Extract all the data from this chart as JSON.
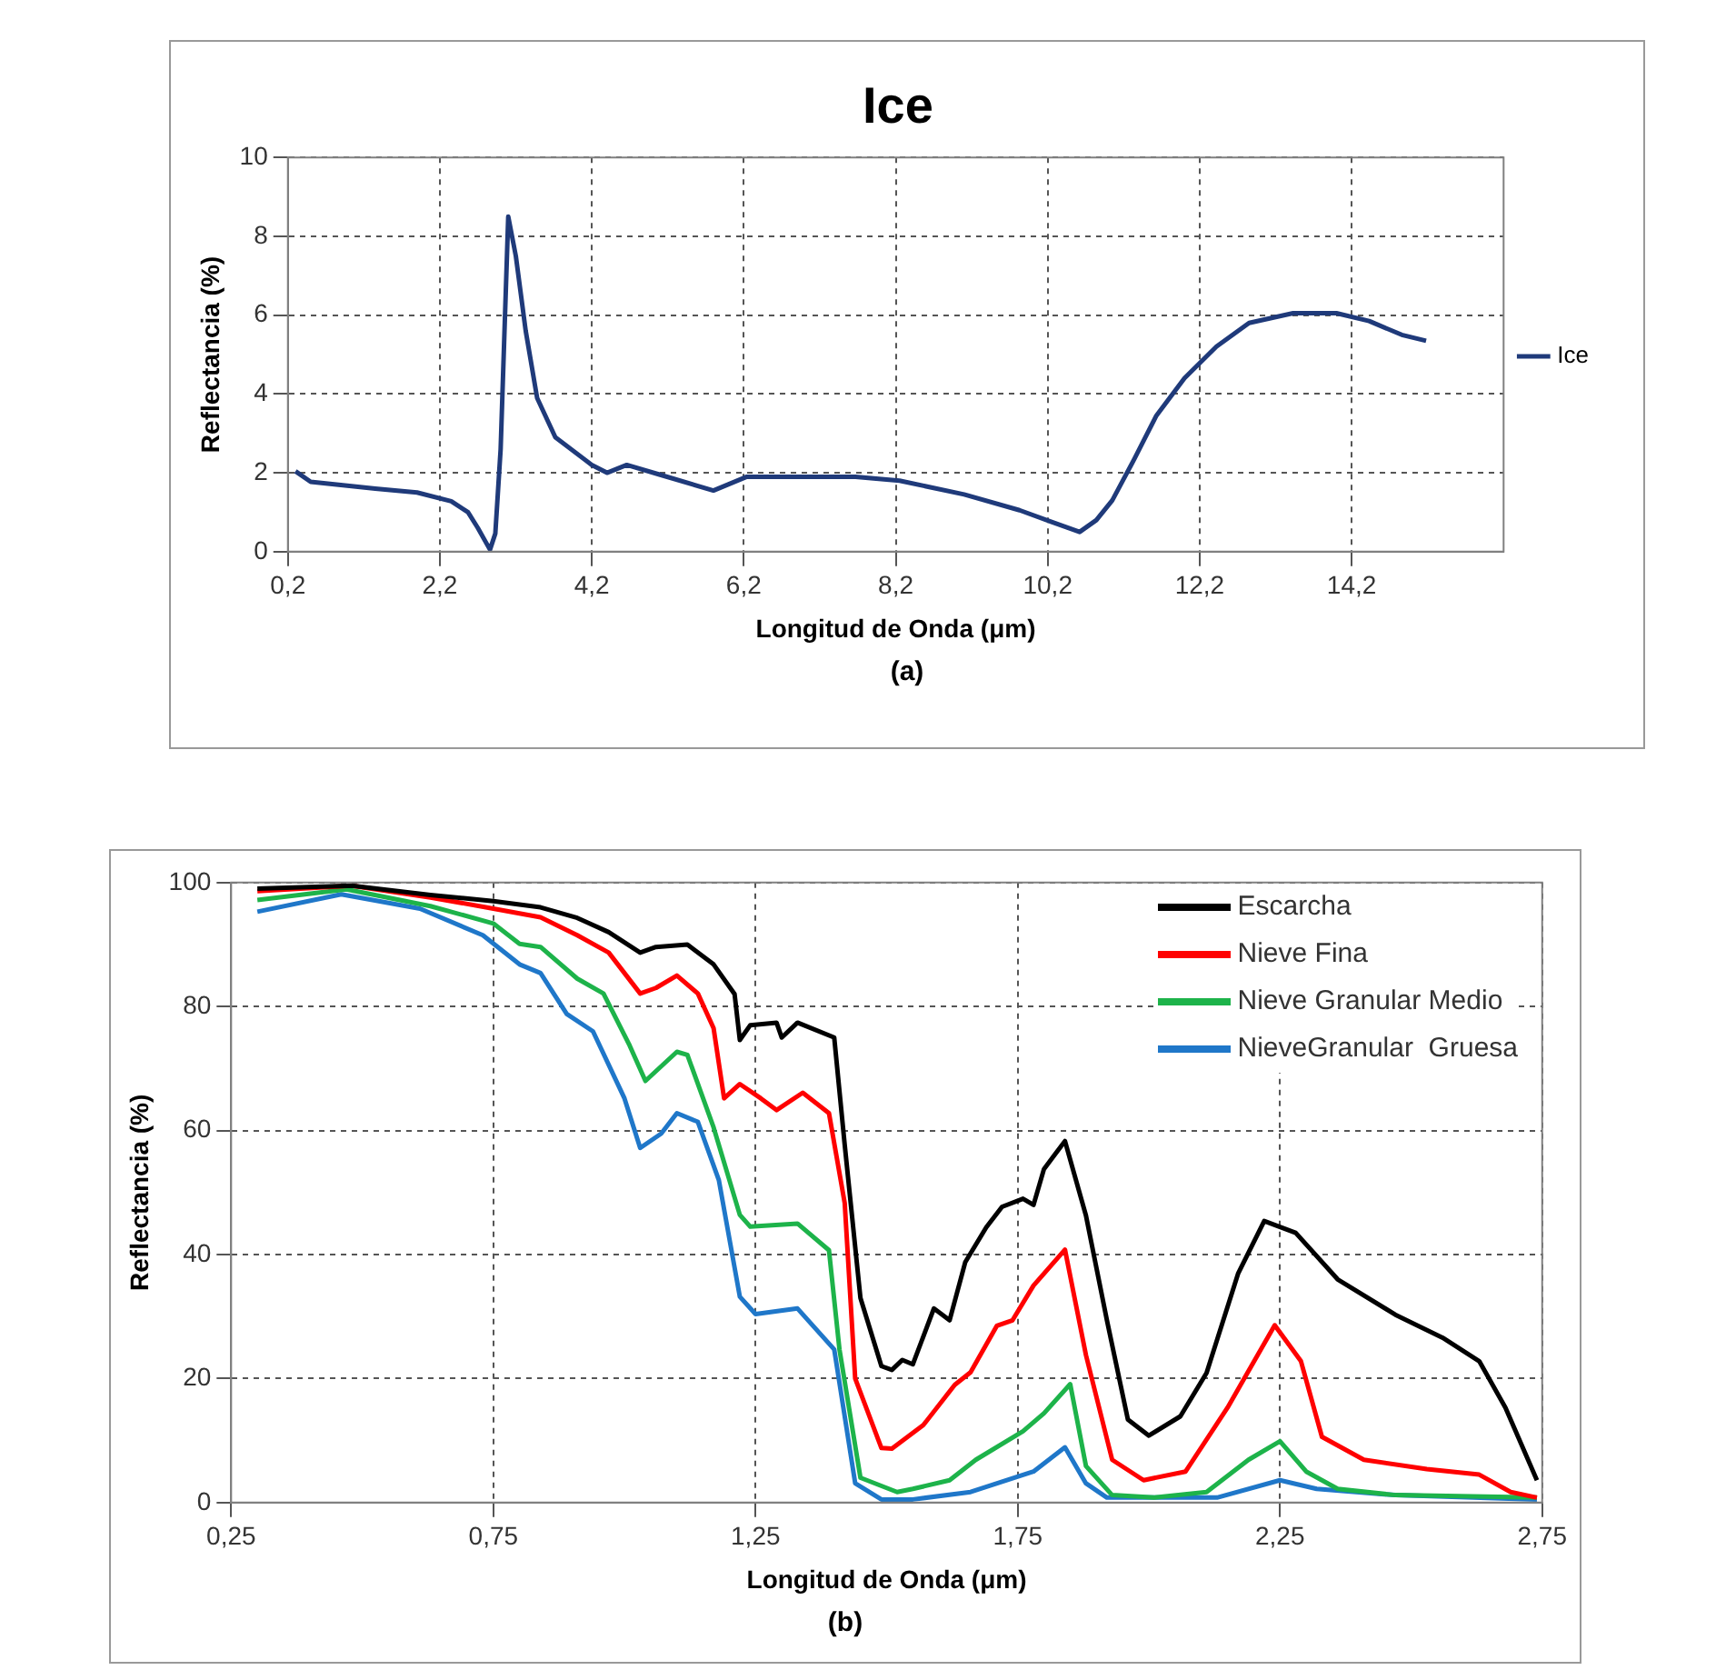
{
  "chart_data": [
    {
      "type": "line",
      "title": "Ice",
      "xlabel": "Longitud de Onda (μm)",
      "ylabel": "Reflectancia (%)",
      "annotations": [
        "(a)"
      ],
      "xlim": [
        0.2,
        16.2
      ],
      "xticks": [
        {
          "value": 0.2,
          "label": "0,2"
        },
        {
          "value": 2.2,
          "label": "2,2"
        },
        {
          "value": 4.2,
          "label": "4,2"
        },
        {
          "value": 6.2,
          "label": "6,2"
        },
        {
          "value": 8.2,
          "label": "8,2"
        },
        {
          "value": 10.2,
          "label": "10,2"
        },
        {
          "value": 12.2,
          "label": "12,2"
        },
        {
          "value": 14.2,
          "label": "14,2"
        }
      ],
      "ylim": [
        0,
        10
      ],
      "yticks": [
        0,
        2,
        4,
        6,
        8,
        10
      ],
      "grid": true,
      "legend": "right",
      "marker": "none",
      "line_style": "solid",
      "series": [
        {
          "name": "Ice",
          "color": "#1f3a7a",
          "x": [
            0.3,
            0.5,
            1.35,
            1.9,
            2.35,
            2.57,
            2.7,
            2.86,
            2.93,
            3.0,
            3.1,
            3.2,
            3.33,
            3.48,
            3.72,
            4.2,
            4.4,
            4.66,
            5.1,
            5.8,
            6.24,
            6.67,
            7.67,
            8.25,
            9.1,
            9.83,
            10.26,
            10.62,
            10.84,
            11.05,
            11.34,
            11.63,
            12.0,
            12.42,
            12.85,
            13.43,
            14.0,
            14.43,
            14.86,
            15.18
          ],
          "values": [
            2.04,
            1.77,
            1.6,
            1.5,
            1.28,
            1.0,
            0.6,
            0.05,
            0.46,
            2.6,
            8.5,
            7.5,
            5.6,
            3.9,
            2.9,
            2.2,
            2.0,
            2.2,
            1.95,
            1.55,
            1.9,
            1.9,
            1.9,
            1.8,
            1.45,
            1.05,
            0.75,
            0.5,
            0.8,
            1.3,
            2.35,
            3.45,
            4.4,
            5.2,
            5.8,
            6.05,
            6.05,
            5.85,
            5.5,
            5.35
          ]
        }
      ]
    },
    {
      "type": "line",
      "xlabel": "Longitud de Onda (μm)",
      "ylabel": "Reflectancia (%)",
      "annotations": [
        "(b)"
      ],
      "xlim": [
        0.25,
        2.75
      ],
      "xticks": [
        {
          "value": 0.25,
          "label": "0,25"
        },
        {
          "value": 0.75,
          "label": "0,75"
        },
        {
          "value": 1.25,
          "label": "1,25"
        },
        {
          "value": 1.75,
          "label": "1,75"
        },
        {
          "value": 2.25,
          "label": "2,25"
        },
        {
          "value": 2.75,
          "label": "2,75"
        }
      ],
      "ylim": [
        0,
        100
      ],
      "yticks": [
        0,
        20,
        40,
        60,
        80,
        100
      ],
      "grid": true,
      "legend": "top right",
      "marker": "none",
      "line_style": "solid",
      "series": [
        {
          "name": "Escarcha",
          "color": "#000000",
          "x": [
            0.3,
            0.48,
            0.63,
            0.75,
            0.84,
            0.91,
            0.97,
            1.03,
            1.06,
            1.12,
            1.17,
            1.21,
            1.22,
            1.24,
            1.29,
            1.3,
            1.33,
            1.4,
            1.42,
            1.45,
            1.49,
            1.51,
            1.53,
            1.55,
            1.59,
            1.62,
            1.65,
            1.69,
            1.72,
            1.76,
            1.78,
            1.8,
            1.84,
            1.88,
            1.92,
            1.96,
            2.0,
            2.06,
            2.11,
            2.17,
            2.22,
            2.28,
            2.36,
            2.47,
            2.56,
            2.63,
            2.68,
            2.74
          ],
          "values": [
            99,
            99.5,
            98,
            97,
            96,
            94.3,
            92,
            88.7,
            89.6,
            90,
            86.8,
            82,
            74.6,
            77,
            77.4,
            75,
            77.4,
            75,
            57.7,
            33,
            22,
            21.4,
            23,
            22.3,
            31.3,
            29.4,
            38.8,
            44.4,
            47.7,
            49,
            48,
            53.8,
            58.3,
            46.3,
            29.4,
            13.4,
            10.8,
            13.9,
            20.9,
            36.9,
            45.4,
            43.5,
            36,
            30.3,
            26.6,
            22.8,
            15.3,
            3.6
          ]
        },
        {
          "name": "Nieve Fina",
          "color": "#ff0000",
          "x": [
            0.3,
            0.48,
            0.63,
            0.75,
            0.84,
            0.91,
            0.97,
            1.03,
            1.06,
            1.1,
            1.14,
            1.17,
            1.19,
            1.22,
            1.26,
            1.29,
            1.34,
            1.39,
            1.42,
            1.44,
            1.49,
            1.51,
            1.57,
            1.63,
            1.66,
            1.71,
            1.74,
            1.78,
            1.84,
            1.88,
            1.93,
            1.99,
            2.07,
            2.15,
            2.24,
            2.29,
            2.33,
            2.41,
            2.53,
            2.63,
            2.69,
            2.74
          ],
          "values": [
            98.6,
            99.5,
            97.6,
            95.8,
            94.4,
            91.5,
            88.7,
            82.1,
            83,
            85,
            82.1,
            76.5,
            65.2,
            67.5,
            65.2,
            63.3,
            66.1,
            62.8,
            48.3,
            20,
            8.8,
            8.7,
            12.5,
            19,
            21,
            28.5,
            29.4,
            35,
            40.8,
            23.8,
            6.9,
            3.6,
            5,
            15.3,
            28.6,
            22.8,
            10.6,
            6.9,
            5.4,
            4.5,
            1.7,
            0.8
          ]
        },
        {
          "name": "Nieve Granular Medio",
          "color": "#1db34a",
          "x": [
            0.3,
            0.47,
            0.63,
            0.75,
            0.8,
            0.84,
            0.91,
            0.96,
            1.01,
            1.04,
            1.1,
            1.12,
            1.17,
            1.22,
            1.24,
            1.33,
            1.39,
            1.41,
            1.45,
            1.52,
            1.55,
            1.62,
            1.67,
            1.76,
            1.8,
            1.85,
            1.88,
            1.93,
            2.01,
            2.11,
            2.19,
            2.25,
            2.3,
            2.36,
            2.47,
            2.74
          ],
          "values": [
            97.2,
            98.9,
            96.2,
            93.4,
            90.1,
            89.6,
            84.5,
            82.1,
            73.7,
            68,
            72.7,
            72.2,
            60.5,
            46.4,
            44.5,
            45,
            40.7,
            24.7,
            4,
            1.7,
            2.2,
            3.6,
            6.9,
            11.5,
            14.4,
            19.1,
            5.9,
            1.2,
            0.8,
            1.7,
            6.9,
            9.9,
            5,
            2.2,
            1.2,
            0.8
          ]
        },
        {
          "name": "NieveGranular  Gruesa",
          "color": "#1f77c9",
          "x": [
            0.3,
            0.46,
            0.61,
            0.73,
            0.8,
            0.84,
            0.89,
            0.94,
            1.0,
            1.03,
            1.07,
            1.1,
            1.14,
            1.18,
            1.22,
            1.25,
            1.33,
            1.4,
            1.44,
            1.49,
            1.55,
            1.66,
            1.78,
            1.84,
            1.88,
            1.92,
            2.13,
            2.25,
            2.32,
            2.47,
            2.74
          ],
          "values": [
            95.3,
            98.1,
            95.8,
            91.5,
            86.8,
            85.4,
            78.8,
            76,
            65.2,
            57.2,
            59.5,
            62.8,
            61.4,
            52,
            33.2,
            30.4,
            31.3,
            24.7,
            3.1,
            0.5,
            0.5,
            1.7,
            5,
            8.9,
            3.1,
            0.8,
            0.8,
            3.6,
            2.2,
            1.2,
            0.5
          ]
        }
      ]
    }
  ]
}
